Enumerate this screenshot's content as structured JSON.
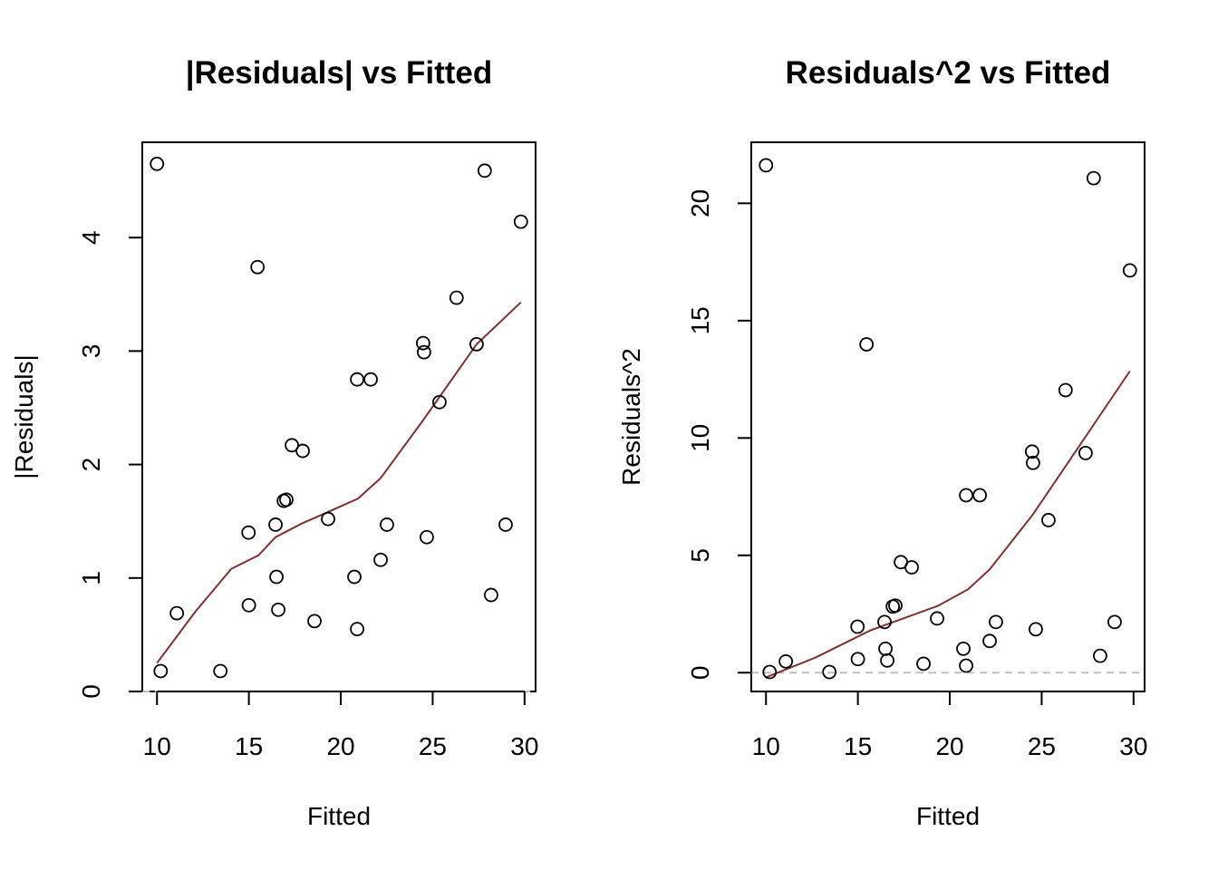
{
  "chart_data": [
    {
      "type": "scatter",
      "title": "|Residuals| vs Fitted",
      "xlabel": "Fitted",
      "ylabel": "|Residuals|",
      "xlim": [
        9.2,
        30.6
      ],
      "ylim": [
        0,
        4.84
      ],
      "xticks": [
        10,
        15,
        20,
        25,
        30
      ],
      "yticks": [
        0,
        1,
        2,
        3,
        4
      ],
      "grid": false,
      "reference_line": {
        "y": 0,
        "style": "dashed",
        "color": "#bebebe"
      },
      "points": {
        "x": [
          10.0,
          10.2,
          11.08,
          13.45,
          14.98,
          15.0,
          15.47,
          16.45,
          16.5,
          16.6,
          16.9,
          17.04,
          17.34,
          17.93,
          18.57,
          19.31,
          20.74,
          20.89,
          20.89,
          21.63,
          22.17,
          22.51,
          24.48,
          24.53,
          24.68,
          25.37,
          26.3,
          27.39,
          27.83,
          28.18,
          28.97,
          29.8
        ],
        "y": [
          4.65,
          0.18,
          0.69,
          0.18,
          1.4,
          0.76,
          3.74,
          1.47,
          1.01,
          0.72,
          1.68,
          1.69,
          2.17,
          2.12,
          0.62,
          1.52,
          1.01,
          2.75,
          0.55,
          2.75,
          1.16,
          1.47,
          3.07,
          2.99,
          1.36,
          2.55,
          3.47,
          3.06,
          4.59,
          0.85,
          1.47,
          4.14
        ]
      },
      "smooth": {
        "color": "#7f3030",
        "x": [
          10.0,
          12.07,
          14.04,
          15.52,
          16.45,
          17.88,
          18.72,
          20.94,
          22.17,
          24.48,
          27.39,
          29.8
        ],
        "y": [
          0.25,
          0.7,
          1.08,
          1.2,
          1.36,
          1.48,
          1.54,
          1.7,
          1.88,
          2.39,
          3.06,
          3.43
        ]
      }
    },
    {
      "type": "scatter",
      "title": "Residuals^2 vs Fitted",
      "xlabel": "Fitted",
      "ylabel": "Residuals^2",
      "xlim": [
        9.2,
        30.6
      ],
      "ylim": [
        -0.8,
        22.6
      ],
      "xticks": [
        10,
        15,
        20,
        25,
        30
      ],
      "yticks": [
        0,
        5,
        10,
        15,
        20
      ],
      "grid": false,
      "reference_line": {
        "y": 0,
        "style": "dashed",
        "color": "#bebebe"
      },
      "points": {
        "x": [
          10.0,
          10.2,
          11.08,
          13.45,
          14.98,
          15.0,
          15.47,
          16.45,
          16.5,
          16.6,
          16.9,
          17.04,
          17.34,
          17.93,
          18.57,
          19.31,
          20.74,
          20.89,
          20.89,
          21.63,
          22.17,
          22.51,
          24.48,
          24.53,
          24.68,
          25.37,
          26.3,
          27.39,
          27.83,
          28.18,
          28.97,
          29.8
        ],
        "y": [
          21.62,
          0.03,
          0.48,
          0.03,
          1.96,
          0.58,
          13.99,
          2.16,
          1.02,
          0.52,
          2.82,
          2.86,
          4.71,
          4.49,
          0.38,
          2.31,
          1.02,
          7.56,
          0.3,
          7.56,
          1.35,
          2.16,
          9.42,
          8.94,
          1.85,
          6.5,
          12.04,
          9.36,
          21.07,
          0.72,
          2.16,
          17.14
        ]
      },
      "smooth": {
        "color": "#7f3030",
        "x": [
          10.0,
          12.71,
          15.67,
          19.36,
          20.99,
          22.17,
          24.53,
          26.26,
          29.8
        ],
        "y": [
          -0.2,
          0.65,
          1.8,
          2.85,
          3.55,
          4.4,
          6.75,
          8.75,
          12.85
        ]
      }
    }
  ]
}
